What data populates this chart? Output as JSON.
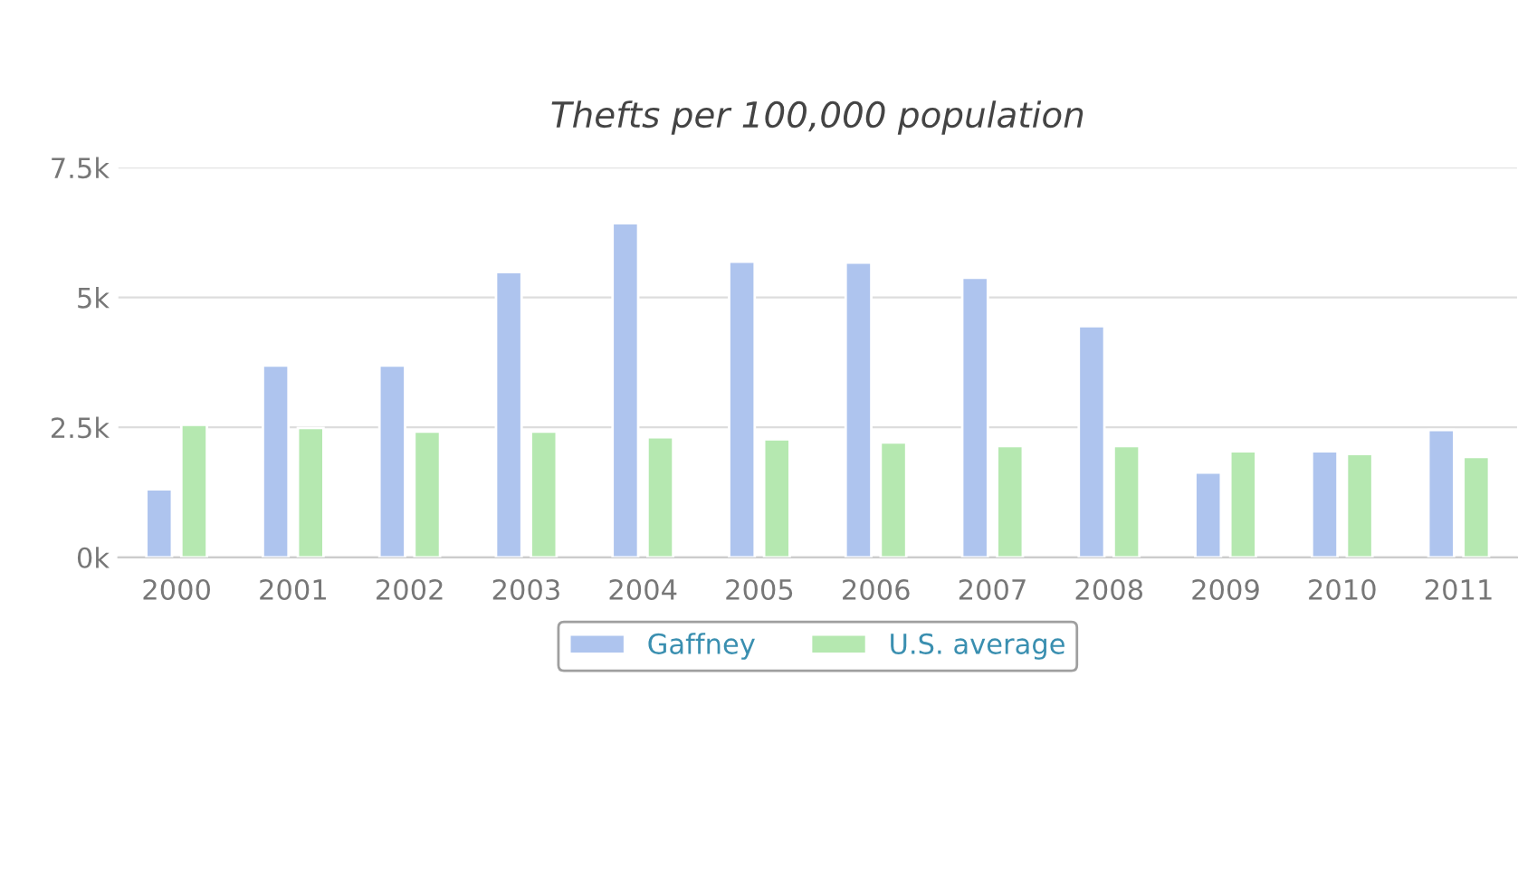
{
  "chart_data": {
    "type": "bar",
    "title": "Thefts per 100,000 population",
    "categories": [
      "2000",
      "2001",
      "2002",
      "2003",
      "2004",
      "2005",
      "2006",
      "2007",
      "2008",
      "2009",
      "2010",
      "2011"
    ],
    "series": [
      {
        "name": "Gaffney",
        "color": "#aec4ee",
        "values": [
          1310,
          3690,
          3690,
          5490,
          6430,
          5690,
          5670,
          5380,
          4450,
          1630,
          2040,
          2450
        ]
      },
      {
        "name": "U.S. average",
        "color": "#b5e8b0",
        "values": [
          2550,
          2490,
          2420,
          2420,
          2310,
          2270,
          2210,
          2140,
          2140,
          2040,
          1990,
          1930
        ]
      }
    ],
    "ylim": [
      0,
      7500
    ],
    "yticks": [
      {
        "value": 0,
        "label": "0k"
      },
      {
        "value": 2500,
        "label": "2.5k"
      },
      {
        "value": 5000,
        "label": "5k"
      },
      {
        "value": 7500,
        "label": "7.5k"
      }
    ],
    "grid": "y",
    "legend": "bottom"
  }
}
